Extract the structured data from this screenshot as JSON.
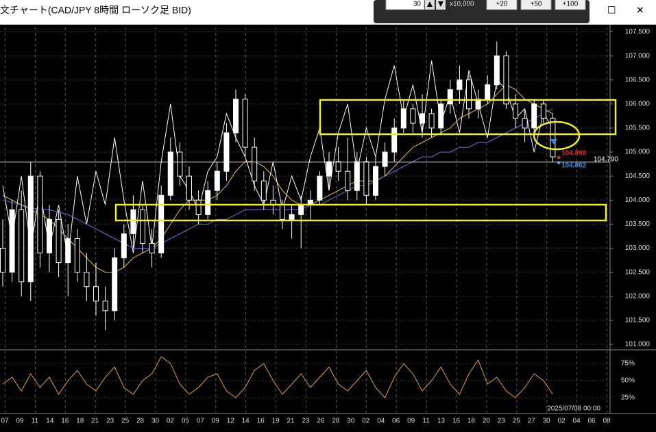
{
  "window": {
    "title": "文チャート(CAD/JPY 8時間 ローソク足 BID)",
    "toolbar": {
      "period": "30",
      "multiplier": "x10,000",
      "buttons": [
        "+20",
        "+50",
        "+100"
      ]
    }
  },
  "chart_data": {
    "type": "candlestick",
    "ohlc": [
      [
        103.0,
        103.6,
        102.2,
        102.5
      ],
      [
        102.5,
        104.0,
        102.3,
        103.8
      ],
      [
        103.8,
        104.2,
        102.0,
        102.3
      ],
      [
        102.3,
        104.8,
        101.9,
        104.5
      ],
      [
        104.5,
        104.6,
        102.6,
        102.9
      ],
      [
        102.9,
        103.9,
        102.5,
        103.6
      ],
      [
        103.6,
        103.8,
        102.4,
        102.7
      ],
      [
        102.7,
        103.5,
        102.0,
        103.2
      ],
      [
        103.2,
        103.4,
        102.3,
        102.5
      ],
      [
        102.5,
        102.9,
        101.9,
        102.2
      ],
      [
        102.2,
        102.7,
        101.6,
        101.9
      ],
      [
        101.9,
        102.2,
        101.3,
        101.7
      ],
      [
        101.7,
        103.0,
        101.5,
        102.8
      ],
      [
        102.8,
        103.5,
        102.6,
        103.3
      ],
      [
        103.3,
        104.1,
        103.0,
        103.8
      ],
      [
        103.8,
        103.9,
        102.9,
        103.1
      ],
      [
        103.1,
        103.4,
        102.6,
        102.9
      ],
      [
        102.9,
        104.3,
        102.8,
        104.1
      ],
      [
        104.1,
        105.3,
        104.0,
        105.0
      ],
      [
        105.0,
        105.2,
        104.3,
        104.5
      ],
      [
        104.5,
        104.7,
        103.8,
        104.0
      ],
      [
        104.0,
        104.2,
        103.5,
        103.7
      ],
      [
        103.7,
        104.4,
        103.6,
        104.2
      ],
      [
        104.2,
        104.8,
        104.0,
        104.6
      ],
      [
        104.6,
        105.6,
        104.4,
        105.4
      ],
      [
        105.4,
        106.3,
        105.2,
        106.1
      ],
      [
        106.1,
        106.2,
        104.9,
        105.1
      ],
      [
        105.1,
        105.3,
        104.2,
        104.4
      ],
      [
        104.4,
        104.6,
        103.8,
        104.0
      ],
      [
        104.0,
        104.3,
        103.7,
        103.9
      ],
      [
        103.9,
        104.0,
        103.4,
        103.6
      ],
      [
        103.6,
        103.9,
        103.2,
        103.7
      ],
      [
        103.7,
        104.1,
        103.0,
        103.9
      ],
      [
        103.9,
        104.2,
        103.6,
        104.0
      ],
      [
        104.0,
        104.6,
        103.9,
        104.5
      ],
      [
        104.5,
        105.0,
        104.2,
        104.8
      ],
      [
        104.8,
        105.1,
        104.4,
        104.6
      ],
      [
        104.6,
        105.3,
        104.0,
        104.2
      ],
      [
        104.2,
        105.0,
        104.0,
        104.8
      ],
      [
        104.8,
        104.9,
        103.9,
        104.1
      ],
      [
        104.1,
        104.9,
        104.0,
        104.7
      ],
      [
        104.7,
        105.2,
        104.5,
        105.0
      ],
      [
        105.0,
        105.7,
        104.8,
        105.5
      ],
      [
        105.5,
        106.1,
        105.4,
        105.9
      ],
      [
        105.9,
        106.0,
        105.4,
        105.6
      ],
      [
        105.6,
        106.2,
        105.3,
        105.8
      ],
      [
        105.8,
        105.9,
        105.3,
        105.5
      ],
      [
        105.5,
        106.1,
        105.4,
        106.0
      ],
      [
        106.0,
        106.5,
        105.8,
        106.3
      ],
      [
        106.3,
        106.8,
        106.0,
        106.5
      ],
      [
        106.5,
        106.6,
        105.7,
        105.9
      ],
      [
        105.9,
        106.3,
        105.7,
        106.1
      ],
      [
        106.1,
        106.6,
        106.0,
        106.4
      ],
      [
        106.4,
        107.3,
        106.3,
        107.0
      ],
      [
        107.0,
        107.1,
        105.9,
        106.0
      ],
      [
        106.0,
        106.2,
        105.5,
        105.7
      ],
      [
        105.7,
        105.9,
        105.2,
        105.5
      ],
      [
        105.5,
        106.1,
        105.4,
        106.0
      ],
      [
        106.0,
        106.1,
        105.6,
        105.7
      ],
      [
        105.7,
        105.8,
        104.8,
        104.9
      ]
    ],
    "series": [
      {
        "color": "#ffffff",
        "values": [
          104.3,
          103.2,
          104.5,
          103.0,
          104.2,
          103.0,
          103.9,
          102.8,
          104.5,
          103.5,
          104.6,
          103.9,
          105.3,
          104.0,
          102.9,
          104.4,
          103.0,
          104.8,
          106.0,
          104.5,
          104.2,
          103.8,
          104.6,
          104.9,
          105.8,
          105.3,
          104.9,
          104.3,
          103.9,
          104.8,
          103.8,
          104.5,
          104.0,
          104.9,
          105.5,
          104.2,
          105.4,
          106.0,
          104.6,
          105.5,
          104.9,
          106.1,
          106.8,
          105.7,
          106.4,
          105.4,
          106.9,
          105.6,
          106.2,
          105.4,
          106.7,
          106.0,
          105.3,
          106.5,
          106.3,
          105.7,
          105.9,
          105.0,
          105.8,
          105.5
        ]
      },
      {
        "color": "#e8c040",
        "values": [
          104.1,
          104.0,
          103.9,
          103.8,
          103.7,
          103.6,
          103.4,
          103.2,
          103.0,
          102.8,
          102.6,
          102.5,
          102.5,
          102.6,
          102.8,
          102.9,
          103.0,
          103.2,
          103.5,
          103.8,
          104.0,
          104.0,
          104.0,
          104.1,
          104.3,
          104.6,
          104.8,
          104.8,
          104.7,
          104.5,
          104.2,
          104.0,
          103.9,
          103.9,
          104.0,
          104.1,
          104.2,
          104.3,
          104.4,
          104.4,
          104.4,
          104.5,
          104.7,
          104.9,
          105.1,
          105.2,
          105.3,
          105.4,
          105.5,
          105.7,
          105.8,
          105.9,
          106.0,
          106.2,
          106.4,
          106.3,
          106.1,
          106.0,
          105.9,
          105.8
        ]
      },
      {
        "color": "#7070e0",
        "values": [
          104.0,
          103.95,
          103.9,
          103.85,
          103.8,
          103.8,
          103.75,
          103.7,
          103.6,
          103.5,
          103.4,
          103.3,
          103.2,
          103.1,
          103.0,
          103.0,
          103.0,
          103.1,
          103.2,
          103.3,
          103.4,
          103.5,
          103.5,
          103.6,
          103.6,
          103.7,
          103.8,
          103.8,
          103.8,
          103.8,
          103.8,
          103.8,
          103.8,
          103.9,
          103.9,
          104.0,
          104.1,
          104.2,
          104.3,
          104.3,
          104.4,
          104.5,
          104.6,
          104.7,
          104.8,
          104.9,
          104.9,
          105.0,
          105.0,
          105.1,
          105.1,
          105.2,
          105.2,
          105.3,
          105.4,
          105.5,
          105.6,
          105.7,
          105.8,
          105.9
        ]
      }
    ],
    "ylim": [
      100.9,
      107.65
    ],
    "yticks": [
      {
        "value": 101.0,
        "label": "101.000"
      },
      {
        "value": 101.5,
        "label": "101.500"
      },
      {
        "value": 102.0,
        "label": "102.000"
      },
      {
        "value": 102.5,
        "label": "102.500"
      },
      {
        "value": 103.0,
        "label": "103.000"
      },
      {
        "value": 103.5,
        "label": "103.500"
      },
      {
        "value": 104.0,
        "label": "104.000"
      },
      {
        "value": 104.5,
        "label": "104.500"
      },
      {
        "value": 105.0,
        "label": "105.000"
      },
      {
        "value": 105.5,
        "label": "105.500"
      },
      {
        "value": 106.0,
        "label": "106.000"
      },
      {
        "value": 106.5,
        "label": "106.500"
      },
      {
        "value": 107.0,
        "label": "107.000"
      },
      {
        "value": 107.5,
        "label": "107.500"
      }
    ],
    "grid": true,
    "price_markers": [
      {
        "value": 104.888,
        "label": "104.888",
        "color": "#e02030"
      },
      {
        "value": 104.862,
        "label": "104.862",
        "color": "#3090e0"
      },
      {
        "value": 104.79,
        "label": "104.790",
        "color": "#ffffff"
      }
    ],
    "oscillator": {
      "color": "#e0a040",
      "values": [
        45,
        55,
        35,
        60,
        40,
        55,
        30,
        50,
        65,
        45,
        35,
        55,
        70,
        40,
        30,
        50,
        60,
        85,
        75,
        45,
        30,
        40,
        55,
        60,
        35,
        25,
        40,
        65,
        75,
        50,
        30,
        45,
        60,
        40,
        55,
        70,
        45,
        35,
        50,
        65,
        40,
        25,
        55,
        75,
        60,
        35,
        50,
        70,
        45,
        30,
        60,
        80,
        45,
        55,
        35,
        25,
        40,
        60,
        50,
        30
      ],
      "ylim": [
        3,
        93
      ],
      "yticks": [
        {
          "value": 25,
          "label": "25%"
        },
        {
          "value": 50,
          "label": "50%"
        },
        {
          "value": 75,
          "label": "75%"
        }
      ]
    },
    "x_labels": [
      "07",
      "09",
      "11",
      "14",
      "16",
      "18",
      "21",
      "23",
      "25",
      "28",
      "30",
      "02",
      "05",
      "07",
      "09",
      "12",
      "14",
      "16",
      "19",
      "21",
      "23",
      "26",
      "28",
      "30",
      "02",
      "04",
      "06",
      "09",
      "11",
      "13",
      "16",
      "18",
      "20",
      "23",
      "25",
      "27",
      "30",
      "02",
      "04",
      "06",
      "08"
    ],
    "date_stamp": "2025/07/08 00:00"
  }
}
